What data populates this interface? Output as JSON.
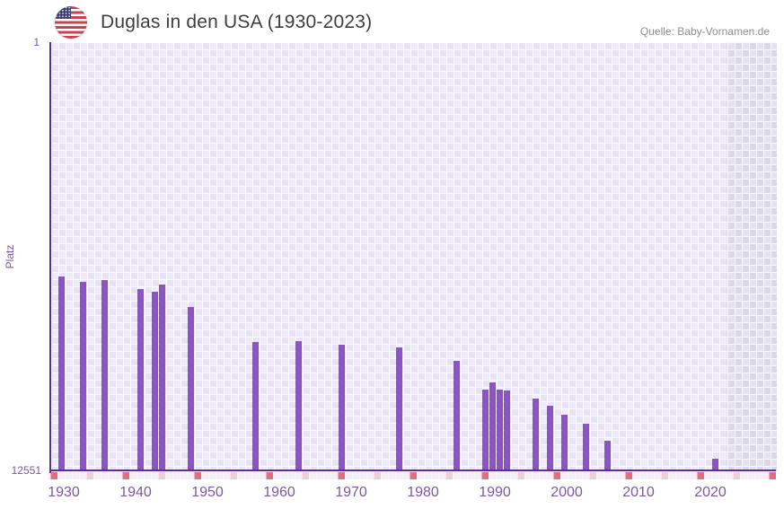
{
  "header": {
    "title": "Duglas in den USA (1930-2023)",
    "source": "Quelle: Baby-Vornamen.de",
    "flag_icon": "us-flag-icon"
  },
  "chart_data": {
    "type": "bar",
    "title": "Duglas in den USA (1930-2023)",
    "xlabel": "",
    "ylabel": "Platz",
    "y_axis": {
      "top_label": "1",
      "bottom_label": "12551",
      "scale": "log",
      "inverted": true
    },
    "ylim": [
      1,
      12551
    ],
    "xlim": [
      1929,
      2030
    ],
    "x_ticks": [
      1930,
      1940,
      1950,
      1960,
      1970,
      1980,
      1990,
      2000,
      2010,
      2020
    ],
    "grid": "checkerboard",
    "legend": "none",
    "shaded_region": {
      "from": 2023,
      "to": 2030,
      "meaning": "no-data-band"
    },
    "points": [
      {
        "year": 1930,
        "rank": 173
      },
      {
        "year": 1933,
        "rank": 194
      },
      {
        "year": 1936,
        "rank": 186
      },
      {
        "year": 1941,
        "rank": 228
      },
      {
        "year": 1943,
        "rank": 243
      },
      {
        "year": 1944,
        "rank": 208
      },
      {
        "year": 1948,
        "rank": 340
      },
      {
        "year": 1957,
        "rank": 727
      },
      {
        "year": 1963,
        "rank": 717
      },
      {
        "year": 1969,
        "rank": 776
      },
      {
        "year": 1977,
        "rank": 828
      },
      {
        "year": 1985,
        "rank": 1113
      },
      {
        "year": 1989,
        "rank": 2094
      },
      {
        "year": 1990,
        "rank": 1777
      },
      {
        "year": 1991,
        "rank": 2094
      },
      {
        "year": 1992,
        "rank": 2123
      },
      {
        "year": 1996,
        "rank": 2550
      },
      {
        "year": 1998,
        "rank": 2986
      },
      {
        "year": 2000,
        "rank": 3640
      },
      {
        "year": 2003,
        "rank": 4433
      },
      {
        "year": 2006,
        "rank": 6375
      },
      {
        "year": 2021,
        "rank": 9574
      }
    ],
    "colors": {
      "bar": "#8c53c5",
      "axis_line": "#5c3193",
      "tick_label": "#7b56ae",
      "title_text": "#3e3e3e",
      "source_text": "#8f8f8f",
      "grid_cell_dark": "#e8e3f3",
      "grid_cell_light": "#efecf8",
      "band_cell": "#dcd8e8",
      "strip_base": "#f4eff6",
      "strip_red": "#e26d7d",
      "strip_pink": "#f2ccd8"
    }
  }
}
